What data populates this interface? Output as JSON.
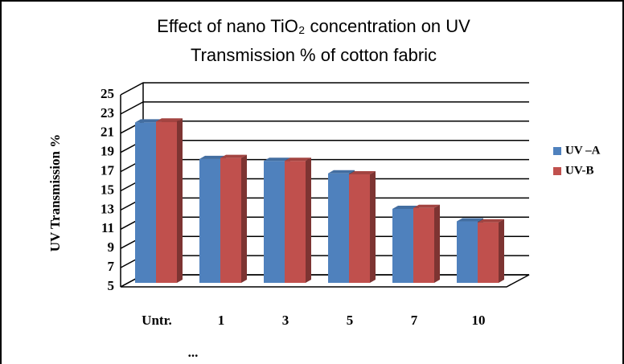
{
  "chart_data": {
    "type": "bar3d",
    "title": [
      "Effect of nano TiO₂ concentration on UV",
      "Transmission %  of cotton fabric"
    ],
    "y_label": "UV  Transmission %",
    "annotation": "...",
    "categories": [
      "Untr.",
      "1",
      "3",
      "5",
      "7",
      "10"
    ],
    "series": [
      {
        "name": "UV –A",
        "color": "#4f81bd",
        "values": [
          21.7,
          17.9,
          17.7,
          16.4,
          12.7,
          11.4
        ]
      },
      {
        "name": "UV-B",
        "color": "#c0504d",
        "values": [
          21.8,
          18.0,
          17.7,
          16.3,
          12.8,
          11.3
        ]
      }
    ],
    "ylim": [
      5,
      25
    ],
    "yticks": [
      5,
      7,
      9,
      11,
      13,
      15,
      17,
      19,
      21,
      23,
      25
    ],
    "grid": true,
    "legend": "right"
  }
}
